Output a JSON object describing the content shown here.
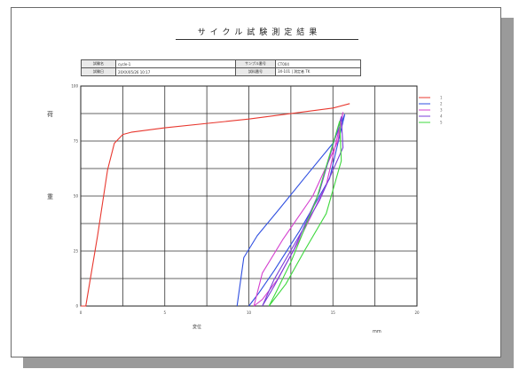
{
  "title": "サイクル試験測定結果",
  "info": {
    "row1": [
      {
        "label": "試験名",
        "value": "cycle-1"
      },
      {
        "label": "サンプル番号",
        "value": "CT004"
      }
    ],
    "row2": [
      {
        "label": "試験日",
        "value": "20XX/05/26 10:17"
      },
      {
        "label": "試料番号",
        "value": "3X-101"
      },
      {
        "label": "測定者",
        "value": "TK"
      }
    ]
  },
  "y_axis_label_chars": [
    "荷",
    "重"
  ],
  "x_axis_label": "変位",
  "x_axis_unit": "mm",
  "colors": {
    "red": "#e8382f",
    "blue": "#2f4fe0",
    "magenta": "#d43fcf",
    "green": "#3ed83e",
    "purple": "#7b3fd8"
  },
  "chart_data": {
    "type": "line",
    "xlim": [
      0,
      20
    ],
    "ylim": [
      0,
      100
    ],
    "x_ticks": [
      "0",
      "5",
      "10",
      "15",
      "20"
    ],
    "y_ticks": [
      "0",
      "25",
      "50",
      "75",
      "100"
    ],
    "grid": true,
    "legend_position": "right",
    "legend_entries": [
      "1",
      "2",
      "3",
      "4",
      "5"
    ],
    "series": [
      {
        "name": "1",
        "color": "#e8382f",
        "x": [
          0,
          0.3,
          1.0,
          1.6,
          2.0,
          2.5,
          3.0,
          5,
          10,
          15,
          16
        ],
        "y": [
          0,
          0,
          32,
          62,
          74,
          78,
          79,
          81,
          85,
          90,
          92
        ]
      },
      {
        "name": "2",
        "color": "#2f4fe0",
        "x": [
          9.3,
          9.7,
          10.5,
          11.8,
          13.5,
          15.0,
          15.7,
          14.8,
          13.0,
          11.5,
          10.6,
          10.2,
          10.0
        ],
        "y": [
          0,
          22,
          32,
          44,
          60,
          74,
          87,
          58,
          34,
          16,
          6,
          2,
          0
        ]
      },
      {
        "name": "3",
        "color": "#d43fcf",
        "x": [
          10.3,
          10.8,
          12.0,
          13.8,
          15.3,
          15.6,
          14.6,
          13.0,
          11.7,
          10.8,
          10.3
        ],
        "y": [
          0,
          15,
          30,
          50,
          75,
          88,
          55,
          30,
          12,
          3,
          0
        ]
      },
      {
        "name": "4",
        "color": "#7b3fd8",
        "x": [
          10.8,
          11.5,
          12.7,
          14.2,
          15.6,
          15.5,
          14.2,
          12.7,
          11.5,
          10.8
        ],
        "y": [
          0,
          12,
          28,
          48,
          72,
          86,
          52,
          26,
          9,
          0
        ]
      },
      {
        "name": "5",
        "color": "#3ed83e",
        "x": [
          11.2,
          12.2,
          13.3,
          14.6,
          15.5,
          15.4,
          14.0,
          12.5,
          11.6,
          11.2
        ],
        "y": [
          0,
          10,
          25,
          42,
          66,
          84,
          48,
          20,
          6,
          0
        ]
      }
    ]
  }
}
